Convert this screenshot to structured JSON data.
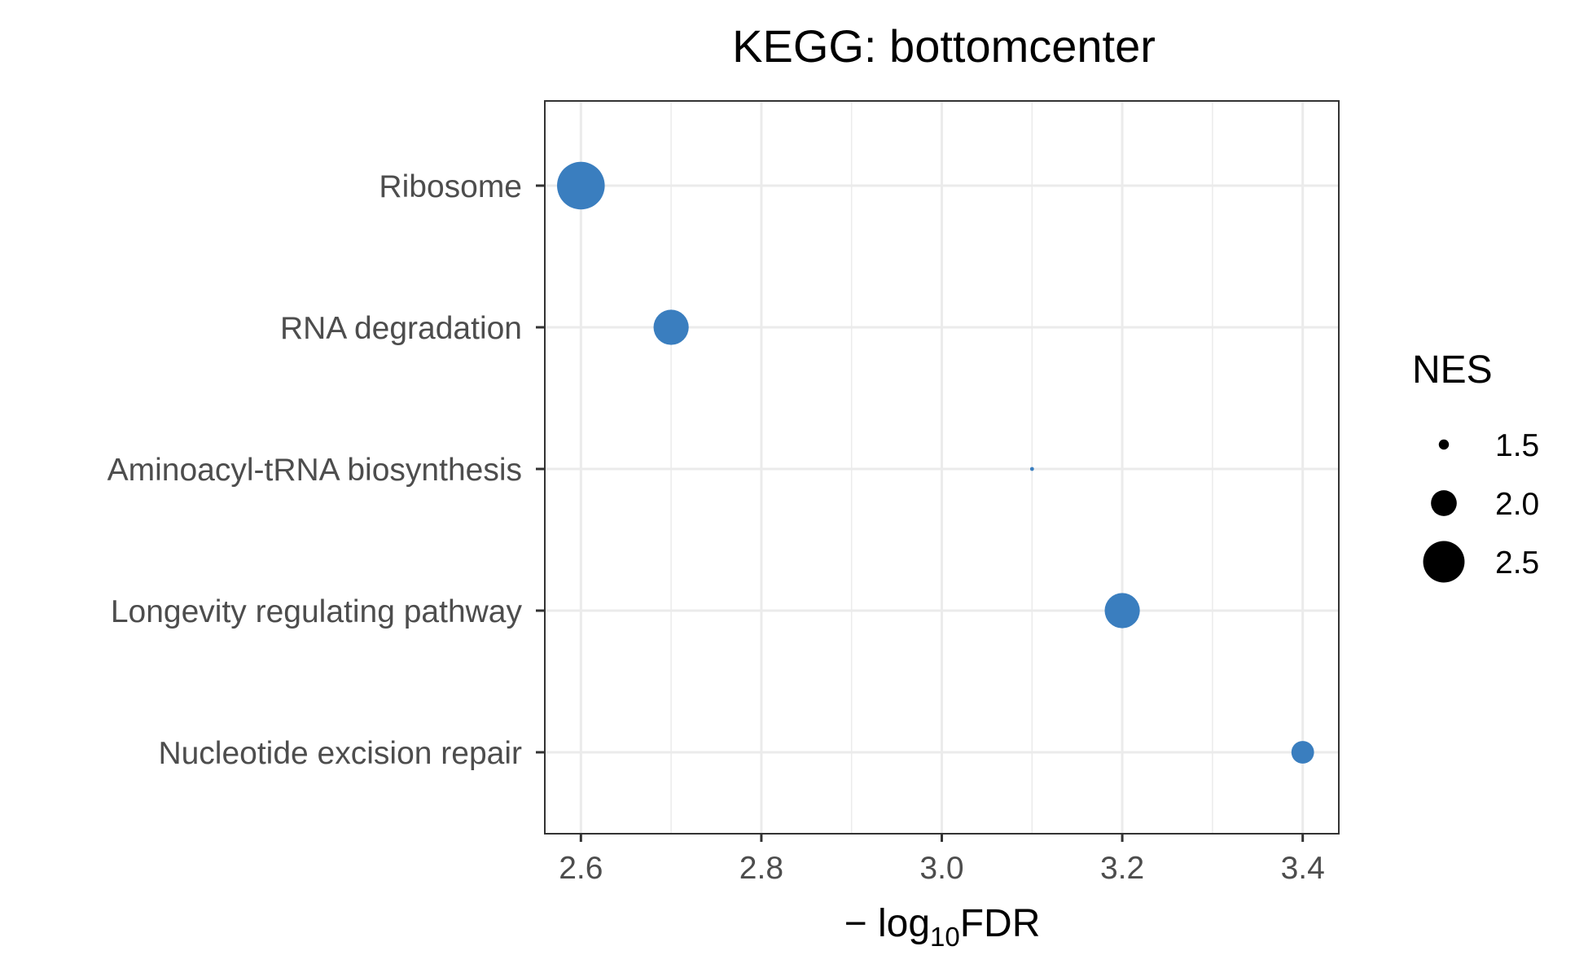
{
  "chart_data": {
    "type": "scatter",
    "title": "KEGG: bottomcenter",
    "xlabel": {
      "prefix": "− log",
      "subscript": "10",
      "suffix": "FDR"
    },
    "ylabel": "",
    "xlim": [
      2.56,
      3.44
    ],
    "x_ticks": [
      "2.6",
      "2.8",
      "3.0",
      "3.2",
      "3.4"
    ],
    "x_tick_values": [
      2.6,
      2.8,
      3.0,
      3.2,
      3.4
    ],
    "x_minor_tick_values": [
      2.7,
      2.9,
      3.1,
      3.3
    ],
    "categories": [
      "Ribosome",
      "RNA degradation",
      "Aminoacyl-tRNA biosynthesis",
      "Longevity regulating pathway",
      "Nucleotide excision repair"
    ],
    "points": [
      {
        "category": "Ribosome",
        "x": 2.6,
        "NES": 2.7
      },
      {
        "category": "RNA degradation",
        "x": 2.7,
        "NES": 2.3
      },
      {
        "category": "Aminoacyl-tRNA biosynthesis",
        "x": 3.1,
        "NES": 1.3
      },
      {
        "category": "Longevity regulating pathway",
        "x": 3.2,
        "NES": 2.3
      },
      {
        "category": "Nucleotide excision repair",
        "x": 3.4,
        "NES": 1.9
      }
    ],
    "point_color": "#3a7ebf",
    "grid": true,
    "legend": {
      "title": "NES",
      "placement": "right",
      "entries": [
        {
          "label": "1.5",
          "value": 1.5
        },
        {
          "label": "2.0",
          "value": 2.0
        },
        {
          "label": "2.5",
          "value": 2.5
        }
      ],
      "color": "#000000"
    }
  }
}
